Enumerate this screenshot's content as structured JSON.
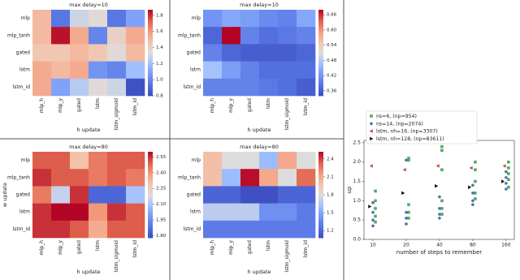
{
  "chart_data": [
    {
      "type": "heatmap",
      "title": "max delay=10",
      "x_label": "h update",
      "cmap": "coolwarm",
      "x_categories": [
        "mlp_h",
        "mlp_y",
        "gated",
        "lstm",
        "lstm_sigmoid",
        "lstm_id"
      ],
      "y_categories": [
        "mlp",
        "mlp_tanh",
        "gated",
        "lstm",
        "lstm_id"
      ],
      "values": [
        [
          1.5,
          0.95,
          1.3,
          1.35,
          0.95,
          1.1
        ],
        [
          1.5,
          1.85,
          1.55,
          1.0,
          1.4,
          1.55
        ],
        [
          1.45,
          1.45,
          1.5,
          1.45,
          1.35,
          1.5
        ],
        [
          1.55,
          1.5,
          1.55,
          1.05,
          1.0,
          1.2
        ],
        [
          1.55,
          1.1,
          1.25,
          1.35,
          1.3,
          0.82
        ]
      ],
      "clim": [
        0.8,
        1.87
      ],
      "cticks": [
        0.8,
        {
          "value": 1,
          "label": "1.0"
        },
        1.2,
        1.4,
        1.6,
        1.8
      ]
    },
    {
      "type": "heatmap",
      "title": "max delay=10",
      "x_label": "h update",
      "cmap": "coolwarm",
      "x_categories": [
        "mlp_h",
        "mlp_y",
        "gated",
        "lstm",
        "lstm_sigmoid",
        "lstm_id"
      ],
      "y_categories": [
        "mlp",
        "mlp_tanh",
        "gated",
        "lstm",
        "lstm_id"
      ],
      "values": [
        [
          0.42,
          0.44,
          0.43,
          0.41,
          0.4,
          0.44
        ],
        [
          0.37,
          0.68,
          0.4,
          0.38,
          0.39,
          0.4
        ],
        [
          0.4,
          0.37,
          0.36,
          0.36,
          0.36,
          0.37
        ],
        [
          0.47,
          0.43,
          0.4,
          0.38,
          0.38,
          0.38
        ],
        [
          0.4,
          0.4,
          0.4,
          0.39,
          0.38,
          0.36
        ]
      ],
      "clim": [
        0.34,
        0.68
      ],
      "cticks": [
        0.36,
        0.42,
        0.48,
        0.54,
        {
          "value": 0.6,
          "label": "0.60"
        },
        0.66
      ]
    },
    {
      "type": "heatmap",
      "title": "max delay=80",
      "x_label": "h update",
      "y_label": "w update",
      "cmap": "coolwarm",
      "x_categories": [
        "mlp_h",
        "mlp_y",
        "gated",
        "lstm",
        "lstm_sigmoid",
        "lstm_id"
      ],
      "y_categories": [
        "mlp",
        "mlp_tanh",
        "gated",
        "lstm",
        "lstm_id"
      ],
      "values": [
        [
          2.5,
          2.5,
          2.3,
          2.45,
          2.5,
          2.5
        ],
        [
          2.55,
          2.5,
          2.5,
          2.45,
          2.5,
          2.45
        ],
        [
          2.45,
          2.15,
          2.55,
          1.85,
          1.85,
          2.1
        ],
        [
          2.55,
          2.6,
          2.6,
          2.4,
          2.55,
          2.5
        ],
        [
          2.55,
          2.55,
          2.5,
          2.35,
          2.5,
          2.5
        ]
      ],
      "clim": [
        1.78,
        2.6
      ],
      "cticks": [
        {
          "value": 1.8,
          "label": "1.80"
        },
        1.95,
        {
          "value": 2.1,
          "label": "2.10"
        },
        2.25,
        {
          "value": 2.4,
          "label": "2.40"
        },
        2.55
      ]
    },
    {
      "type": "heatmap",
      "title": "max delay=80",
      "x_label": "h update",
      "cmap": "coolwarm",
      "x_categories": [
        "mlp_h",
        "mlp_y",
        "gated",
        "lstm",
        "lstm_sigmoid",
        "lstm_id"
      ],
      "y_categories": [
        "mlp",
        "mlp_tanh",
        "gated",
        "lstm",
        "lstm_id"
      ],
      "values": [
        [
          2.0,
          1.8,
          1.8,
          1.6,
          2.1,
          1.8
        ],
        [
          2.0,
          1.6,
          2.5,
          2.1,
          1.8,
          2.3
        ],
        [
          1.2,
          1.2,
          1.1,
          1.1,
          1.2,
          1.2
        ],
        [
          1.7,
          1.7,
          1.7,
          1.4,
          1.4,
          1.3
        ],
        [
          1.3,
          1.3,
          1.3,
          1.3,
          1.3,
          1.3
        ]
      ],
      "clim": [
        1.08,
        2.52
      ],
      "cticks": [
        1.2,
        1.5,
        1.8,
        2.1,
        2.4
      ]
    },
    {
      "type": "scatter",
      "x_label": "number of steps to remember",
      "y_label": "up",
      "xscale": "log",
      "xlim": [
        8.3,
        190
      ],
      "ylim": [
        0,
        2.56
      ],
      "xticks": [
        10,
        20,
        40,
        80,
        160
      ],
      "yticks": [
        {
          "value": 0,
          "label": "0.0"
        },
        0.5,
        {
          "value": 1,
          "label": "1.0"
        },
        1.5,
        {
          "value": 2,
          "label": "2.0"
        },
        2.5
      ],
      "legend": "upper left",
      "series": [
        {
          "name": "ns=6, (np=954)",
          "color": "#55a868",
          "marker": "square",
          "x": [
            10,
            10,
            10,
            10,
            10,
            20,
            20,
            20,
            20,
            20,
            40,
            40,
            40,
            40,
            40,
            40,
            80,
            80,
            80,
            80,
            80,
            160,
            160,
            160,
            160,
            160
          ],
          "values": [
            0.45,
            0.6,
            0.8,
            1.0,
            1.25,
            0.55,
            0.7,
            0.9,
            2.05,
            2.1,
            0.65,
            0.8,
            1.0,
            1.8,
            2.3,
            2.4,
            1.05,
            1.2,
            1.5,
            1.8,
            2.0,
            1.35,
            1.55,
            1.7,
            1.85,
            2.0
          ]
        },
        {
          "name": "ns=14, (np=2074)",
          "color": "#4c72b0",
          "marker": "circle",
          "x": [
            10,
            10,
            10,
            10,
            20,
            20,
            20,
            20,
            40,
            40,
            40,
            40,
            80,
            80,
            80,
            80,
            160,
            160,
            160,
            160
          ],
          "values": [
            0.35,
            0.5,
            0.7,
            0.95,
            0.4,
            0.55,
            0.7,
            2.05,
            0.55,
            0.65,
            0.8,
            1.1,
            0.9,
            1.0,
            1.2,
            1.4,
            1.3,
            1.45,
            1.6,
            1.75
          ]
        },
        {
          "name": "lstm, nh=16, (np=3307)",
          "color": "#c44e52",
          "marker": "triangle-left",
          "x": [
            10,
            20,
            40,
            80,
            160
          ],
          "values": [
            1.9,
            1.8,
            1.9,
            1.85,
            1.9
          ]
        },
        {
          "name": "lstm, nh=128, (np=83611)",
          "color": "#111111",
          "marker": "triangle-right",
          "x": [
            10,
            20,
            40,
            80,
            160
          ],
          "values": [
            0.85,
            1.2,
            1.38,
            1.35,
            1.5
          ]
        }
      ]
    }
  ]
}
